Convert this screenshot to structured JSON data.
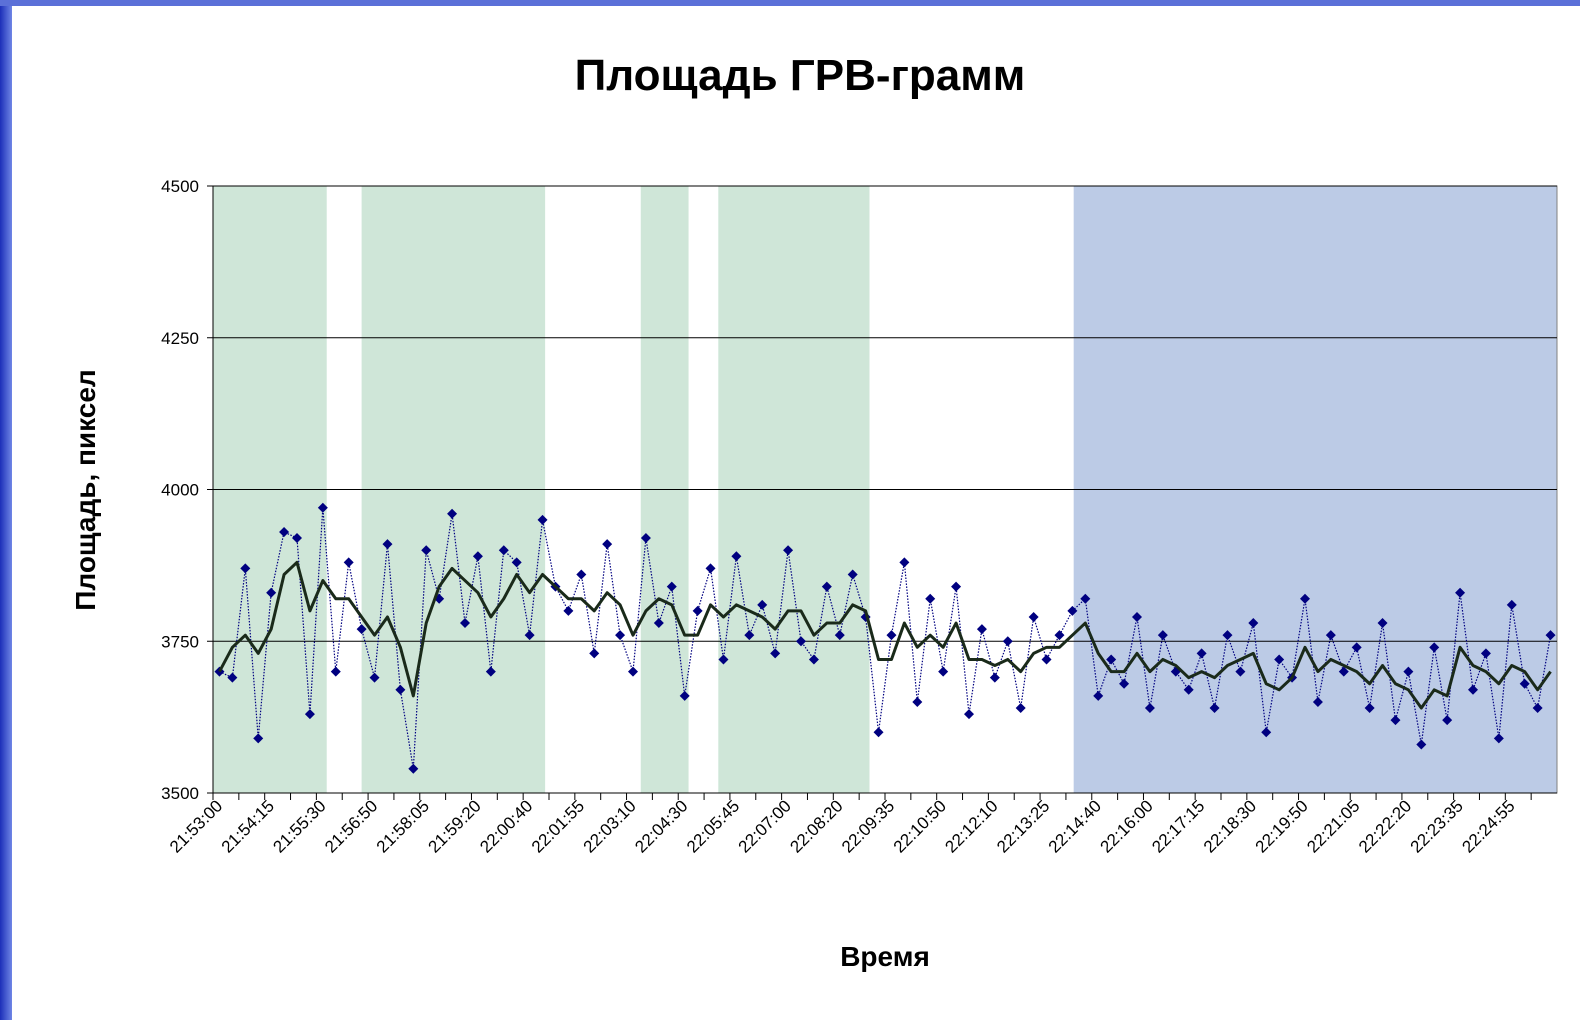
{
  "chart_data": {
    "type": "line",
    "title": "Площадь ГРВ-грамм",
    "x_label": "Время",
    "y_label": "Площадь, пиксел",
    "ylim": [
      3500,
      4500
    ],
    "yticks": [
      3500,
      3750,
      4000,
      4250,
      4500
    ],
    "grid": true,
    "bands": [
      {
        "from": 0,
        "to": 8.8,
        "color": "#cfe6d8"
      },
      {
        "from": 11.5,
        "to": 25.7,
        "color": "#cfe6d8"
      },
      {
        "from": 33.1,
        "to": 36.8,
        "color": "#cfe6d8"
      },
      {
        "from": 39.1,
        "to": 50.8,
        "color": "#cfe6d8"
      },
      {
        "from": 66.6,
        "to": 104,
        "color": "#bccbe6"
      }
    ],
    "categories": [
      "21:53:00",
      null,
      null,
      null,
      "21:54:15",
      null,
      null,
      null,
      "21:55:30",
      null,
      null,
      null,
      "21:56:50",
      null,
      null,
      null,
      "21:58:05",
      null,
      null,
      null,
      "21:59:20",
      null,
      null,
      null,
      "22:00:40",
      null,
      null,
      null,
      "22:01:55",
      null,
      null,
      null,
      "22:03:10",
      null,
      null,
      null,
      "22:04:30",
      null,
      null,
      null,
      "22:05:45",
      null,
      null,
      null,
      "22:07:00",
      null,
      null,
      null,
      "22:08:20",
      null,
      null,
      null,
      "22:09:35",
      null,
      null,
      null,
      "22:10:50",
      null,
      null,
      null,
      "22:12:10",
      null,
      null,
      null,
      "22:13:25",
      null,
      null,
      null,
      "22:14:40",
      null,
      null,
      null,
      "22:16:00",
      null,
      null,
      null,
      "22:17:15",
      null,
      null,
      null,
      "22:18:30",
      null,
      null,
      null,
      "22:19:50",
      null,
      null,
      null,
      "22:21:05",
      null,
      null,
      null,
      "22:22:20",
      null,
      null,
      null,
      "22:23:35",
      null,
      null,
      null,
      "22:24:55",
      null,
      null,
      null
    ],
    "series": [
      {
        "color": "#000080",
        "marker": "diamond",
        "line_style": "dotted",
        "values": [
          3700,
          3690,
          3870,
          3590,
          3830,
          3930,
          3920,
          3630,
          3970,
          3700,
          3880,
          3770,
          3690,
          3910,
          3670,
          3540,
          3900,
          3820,
          3960,
          3780,
          3890,
          3700,
          3900,
          3880,
          3760,
          3950,
          3840,
          3800,
          3860,
          3730,
          3910,
          3760,
          3700,
          3920,
          3780,
          3840,
          3660,
          3800,
          3870,
          3720,
          3890,
          3760,
          3810,
          3730,
          3900,
          3750,
          3720,
          3840,
          3760,
          3860,
          3790,
          3600,
          3760,
          3880,
          3650,
          3820,
          3700,
          3840,
          3630,
          3770,
          3690,
          3750,
          3640,
          3790,
          3720,
          3760,
          3800,
          3820,
          3660,
          3720,
          3680,
          3790,
          3640,
          3760,
          3700,
          3670,
          3730,
          3640,
          3760,
          3700,
          3780,
          3600,
          3720,
          3690,
          3820,
          3650,
          3760,
          3700,
          3740,
          3640,
          3780,
          3620,
          3700,
          3580,
          3740,
          3620,
          3830,
          3670,
          3730,
          3590,
          3810,
          3680,
          3640,
          3760
        ]
      },
      {
        "color": "#1a2a1a",
        "values": [
          3700,
          3740,
          3760,
          3730,
          3770,
          3860,
          3880,
          3800,
          3850,
          3820,
          3820,
          3790,
          3760,
          3790,
          3740,
          3660,
          3780,
          3840,
          3870,
          3850,
          3830,
          3790,
          3820,
          3860,
          3830,
          3860,
          3840,
          3820,
          3820,
          3800,
          3830,
          3810,
          3760,
          3800,
          3820,
          3810,
          3760,
          3760,
          3810,
          3790,
          3810,
          3800,
          3790,
          3770,
          3800,
          3800,
          3760,
          3780,
          3780,
          3810,
          3800,
          3720,
          3720,
          3780,
          3740,
          3760,
          3740,
          3780,
          3720,
          3720,
          3710,
          3720,
          3700,
          3730,
          3740,
          3740,
          3760,
          3780,
          3730,
          3700,
          3700,
          3730,
          3700,
          3720,
          3710,
          3690,
          3700,
          3690,
          3710,
          3720,
          3730,
          3680,
          3670,
          3690,
          3740,
          3700,
          3720,
          3710,
          3700,
          3680,
          3710,
          3680,
          3670,
          3640,
          3670,
          3660,
          3740,
          3710,
          3700,
          3680,
          3710,
          3700,
          3670,
          3700
        ]
      }
    ]
  }
}
